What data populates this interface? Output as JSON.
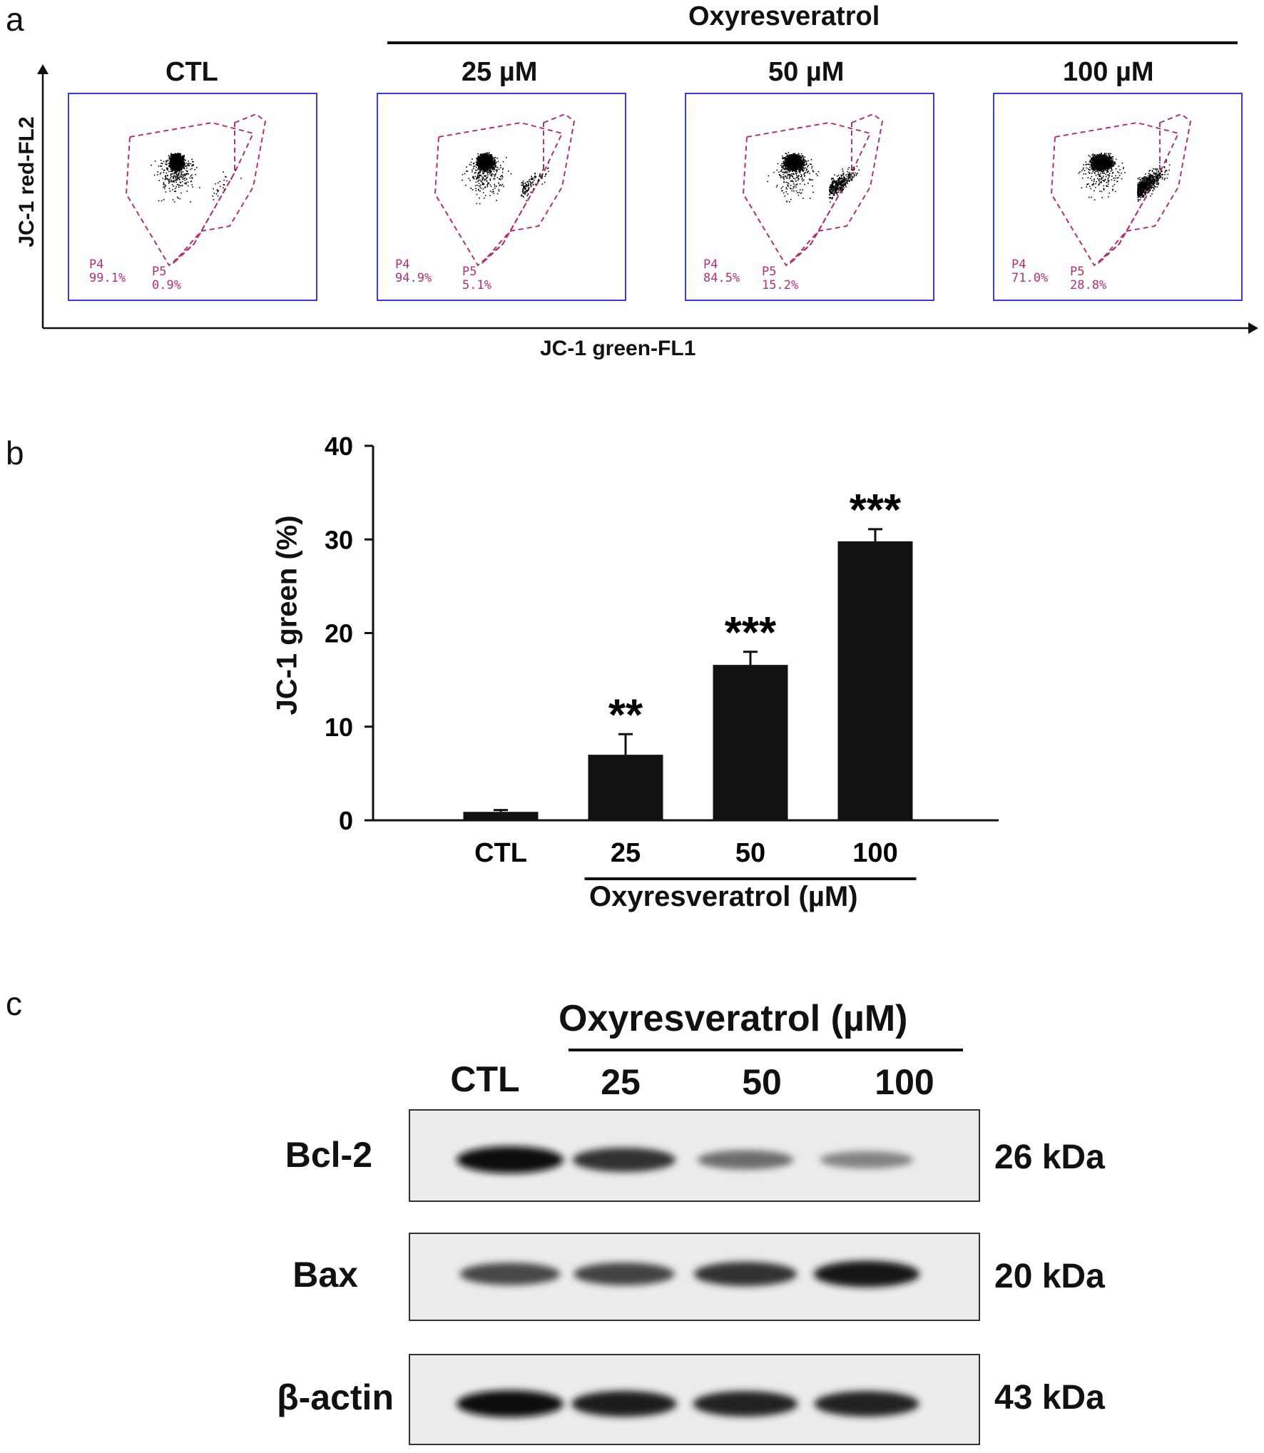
{
  "panel_a": {
    "letter": "a",
    "treatment_title": "Oxyresveratrol",
    "y_axis_label": "JC-1 red-FL2",
    "x_axis_label": "JC-1 green-FL1",
    "plots": [
      {
        "title": "CTL",
        "p4_label": "P4",
        "p4_value": "99.1%",
        "p5_label": "P5",
        "p5_value": "0.9%"
      },
      {
        "title": "25 µM",
        "p4_label": "P4",
        "p4_value": "94.9%",
        "p5_label": "P5",
        "p5_value": "5.1%"
      },
      {
        "title": "50 µM",
        "p4_label": "P4",
        "p4_value": "84.5%",
        "p5_label": "P5",
        "p5_value": "15.2%"
      },
      {
        "title": "100 µM",
        "p4_label": "P4",
        "p4_value": "71.0%",
        "p5_label": "P5",
        "p5_value": "28.8%"
      }
    ],
    "colors": {
      "box_border": "#3a3adf",
      "gate": "#b0307a",
      "dots": "#000000"
    }
  },
  "panel_b": {
    "letter": "b",
    "group_label": "Oxyresveratrol (µM)"
  },
  "chart_data": {
    "type": "bar",
    "categories": [
      "CTL",
      "25",
      "50",
      "100"
    ],
    "values": [
      0.9,
      7.0,
      16.6,
      29.8
    ],
    "error": [
      0.2,
      2.2,
      1.4,
      1.3
    ],
    "significance": [
      "",
      "**",
      "***",
      "***"
    ],
    "title": "",
    "xlabel": "Oxyresveratrol (µM)",
    "ylabel": "JC-1 green (%)",
    "ylim": [
      0,
      40
    ],
    "yticks": [
      "0",
      "10",
      "20",
      "30",
      "40"
    ],
    "grid": false,
    "bar_color": "#111111"
  },
  "panel_c": {
    "letter": "c",
    "treatment_title": "Oxyresveratrol (µM)",
    "lanes": [
      "CTL",
      "25",
      "50",
      "100"
    ],
    "blots": [
      {
        "protein": "Bcl-2",
        "size": "26 kDa",
        "intensity": [
          1.0,
          0.82,
          0.5,
          0.38
        ]
      },
      {
        "protein": "Bax",
        "size": "20 kDa",
        "intensity": [
          0.7,
          0.72,
          0.82,
          0.95
        ]
      },
      {
        "protein": "β-actin",
        "size": "43 kDa",
        "intensity": [
          1.0,
          0.92,
          0.9,
          0.9
        ]
      }
    ]
  }
}
